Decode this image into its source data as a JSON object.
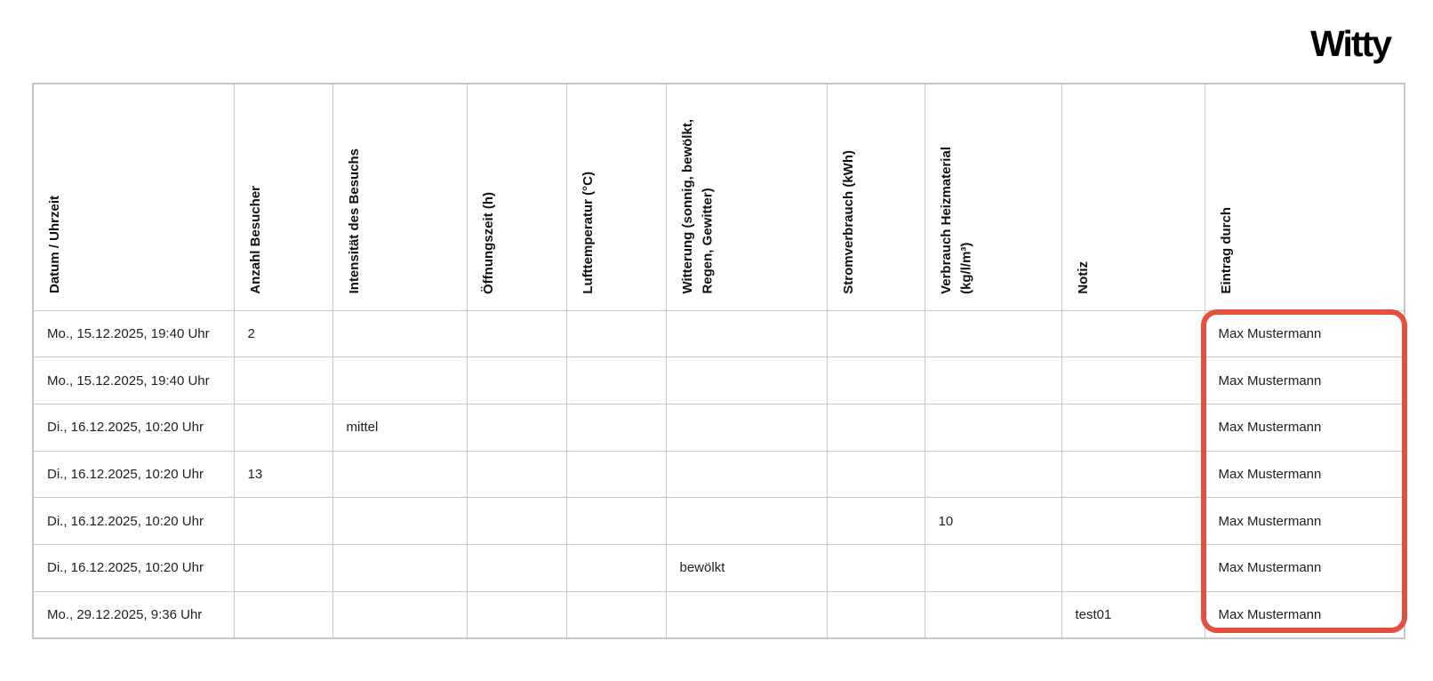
{
  "logo": {
    "text": "Witty"
  },
  "table": {
    "columns": [
      {
        "id": "datum-uhrzeit",
        "label": "Datum / Uhrzeit"
      },
      {
        "id": "anzahl-besucher",
        "label": "Anzahl Besucher"
      },
      {
        "id": "intensitaet-besuch",
        "label": "Intensität des Besuchs"
      },
      {
        "id": "oeffnungszeit",
        "label": "Öffnungszeit (h)"
      },
      {
        "id": "lufttemperatur",
        "label": "Lufttemperatur (°C)"
      },
      {
        "id": "witterung",
        "label": "Witterung (sonnig, bewölkt,\nRegen, Gewitter)"
      },
      {
        "id": "stromverbrauch",
        "label": "Stromverbrauch (kWh)"
      },
      {
        "id": "verbrauch-heizmaterial",
        "label": "Verbrauch Heizmaterial\n(kg/l/m³)"
      },
      {
        "id": "notiz",
        "label": "Notiz"
      },
      {
        "id": "eintrag-durch",
        "label": "Eintrag durch"
      }
    ],
    "rows": [
      [
        "Mo., 15.12.2025, 19:40 Uhr",
        "2",
        "",
        "",
        "",
        "",
        "",
        "",
        "",
        "Max Mustermann"
      ],
      [
        "Mo., 15.12.2025, 19:40 Uhr",
        "",
        "",
        "",
        "",
        "",
        "",
        "",
        "",
        "Max Mustermann"
      ],
      [
        "Di., 16.12.2025, 10:20 Uhr",
        "",
        "mittel",
        "",
        "",
        "",
        "",
        "",
        "",
        "Max Mustermann"
      ],
      [
        "Di., 16.12.2025, 10:20 Uhr",
        "13",
        "",
        "",
        "",
        "",
        "",
        "",
        "",
        "Max Mustermann"
      ],
      [
        "Di., 16.12.2025, 10:20 Uhr",
        "",
        "",
        "",
        "",
        "",
        "",
        "10",
        "",
        "Max Mustermann"
      ],
      [
        "Di., 16.12.2025, 10:20 Uhr",
        "",
        "",
        "",
        "",
        "bewölkt",
        "",
        "",
        "",
        "Max Mustermann"
      ],
      [
        "Mo., 29.12.2025, 9:36 Uhr",
        "",
        "",
        "",
        "",
        "",
        "",
        "",
        "test01",
        "Max Mustermann"
      ]
    ]
  },
  "highlight": {
    "color": "#e5503e"
  }
}
